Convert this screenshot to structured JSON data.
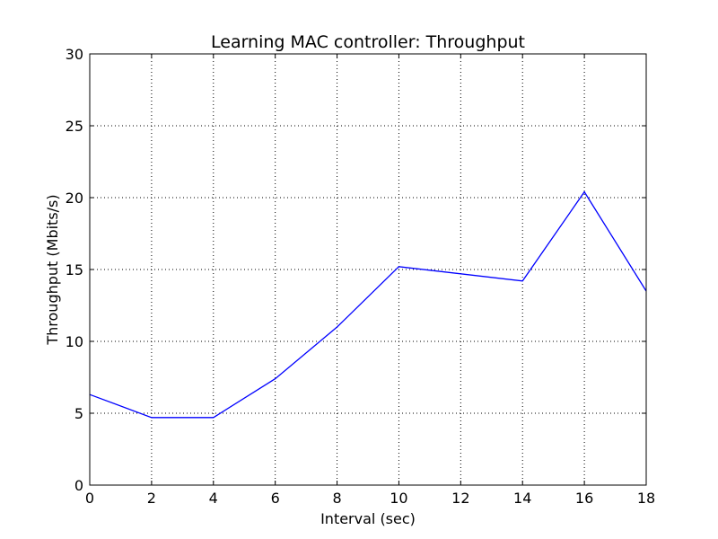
{
  "chart_data": {
    "type": "line",
    "title": "Learning MAC controller: Throughput",
    "xlabel": "Interval (sec)",
    "ylabel": "Throughput (Mbits/s)",
    "xlim": [
      0,
      18
    ],
    "ylim": [
      0,
      30
    ],
    "xticks": [
      "0",
      "2",
      "4",
      "6",
      "8",
      "10",
      "12",
      "14",
      "16",
      "18"
    ],
    "yticks": [
      "0",
      "5",
      "10",
      "15",
      "20",
      "25",
      "30"
    ],
    "grid": true,
    "series": [
      {
        "color": "#0000ff",
        "x": [
          0,
          2,
          4,
          6,
          8,
          10,
          14,
          16,
          18
        ],
        "y": [
          6.3,
          4.7,
          4.7,
          7.4,
          11.0,
          15.2,
          14.2,
          20.4,
          13.5
        ]
      }
    ]
  }
}
